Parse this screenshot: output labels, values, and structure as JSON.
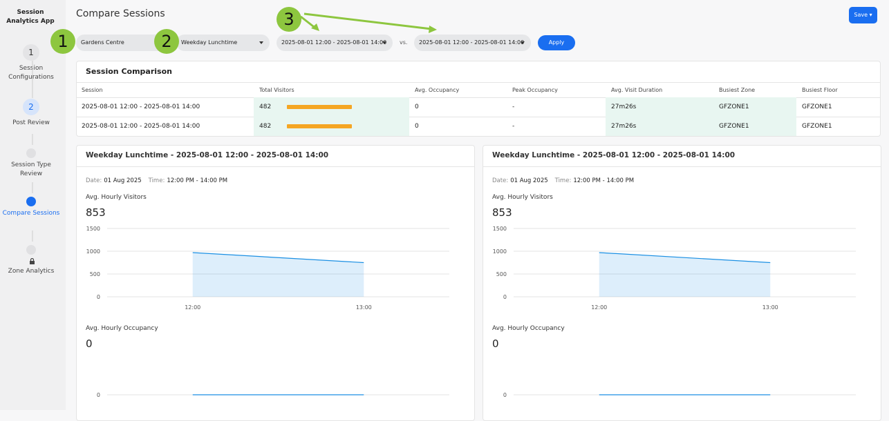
{
  "sidebar": {
    "app_title": "Session Analytics App",
    "steps": [
      {
        "number": "1",
        "label": "Session Configurations"
      },
      {
        "number": "2",
        "label": "Post Review"
      },
      {
        "label": "Session Type Review"
      },
      {
        "label": "Compare Sessions"
      },
      {
        "label": "Zone Analytics"
      }
    ]
  },
  "header": {
    "title": "Compare Sessions",
    "save": "Save"
  },
  "callouts": [
    "1",
    "2",
    "3"
  ],
  "filters": {
    "location": "Gardens Centre",
    "session_type": "Weekday Lunchtime",
    "range_a": "2025-08-01 12:00 - 2025-08-01 14:00",
    "vs": "vs.",
    "range_b": "2025-08-01 12:00 - 2025-08-01 14:00",
    "apply": "Apply"
  },
  "comparison": {
    "title": "Session Comparison",
    "columns": [
      "Session",
      "Total Visitors",
      "Avg. Occupancy",
      "Peak Occupancy",
      "Avg. Visit Duration",
      "Busiest Zone",
      "Busiest Floor"
    ],
    "rows": [
      [
        "2025-08-01 12:00 - 2025-08-01 14:00",
        482,
        0,
        "-",
        "27m26s",
        "GFZONE1",
        "GFZONE1"
      ],
      [
        "2025-08-01 12:00 - 2025-08-01 14:00",
        482,
        0,
        "-",
        "27m26s",
        "GFZONE1",
        "GFZONE1"
      ]
    ],
    "bar_color": "#f5a623"
  },
  "panels": [
    {
      "title": "Weekday Lunchtime - 2025-08-01 12:00 - 2025-08-01 14:00",
      "date_label": "Date:",
      "date": "01 Aug 2025",
      "time_label": "Time:",
      "time": "12:00 PM - 14:00 PM",
      "visitors_label": "Avg. Hourly Visitors",
      "visitors_value": 853,
      "visitors_chart": {
        "type": "area",
        "categories": [
          "12:00",
          "13:00"
        ],
        "values": [
          970,
          750
        ],
        "ylim": [
          0,
          1500
        ],
        "yticks": [
          0,
          500,
          1000,
          1500
        ],
        "grid": true,
        "color": "#1a8fe3"
      },
      "occupancy_label": "Avg. Hourly Occupancy",
      "occupancy_value": 0,
      "occupancy_chart": {
        "type": "line",
        "categories": [
          null,
          null
        ],
        "values": [
          0,
          0
        ],
        "ylim": [
          0,
          1
        ],
        "yticks": [
          0
        ],
        "grid": true,
        "color": "#1a8fe3"
      }
    },
    {
      "title": "Weekday Lunchtime - 2025-08-01 12:00 - 2025-08-01 14:00",
      "date_label": "Date:",
      "date": "01 Aug 2025",
      "time_label": "Time:",
      "time": "12:00 PM - 14:00 PM",
      "visitors_label": "Avg. Hourly Visitors",
      "visitors_value": 853,
      "visitors_chart": {
        "type": "area",
        "categories": [
          "12:00",
          "13:00"
        ],
        "values": [
          970,
          750
        ],
        "ylim": [
          0,
          1500
        ],
        "yticks": [
          0,
          500,
          1000,
          1500
        ],
        "grid": true,
        "color": "#1a8fe3"
      },
      "occupancy_label": "Avg. Hourly Occupancy",
      "occupancy_value": 0,
      "occupancy_chart": {
        "type": "line",
        "categories": [
          null,
          null
        ],
        "values": [
          0,
          0
        ],
        "ylim": [
          0,
          1
        ],
        "yticks": [
          0
        ],
        "grid": true,
        "color": "#1a8fe3"
      }
    }
  ]
}
